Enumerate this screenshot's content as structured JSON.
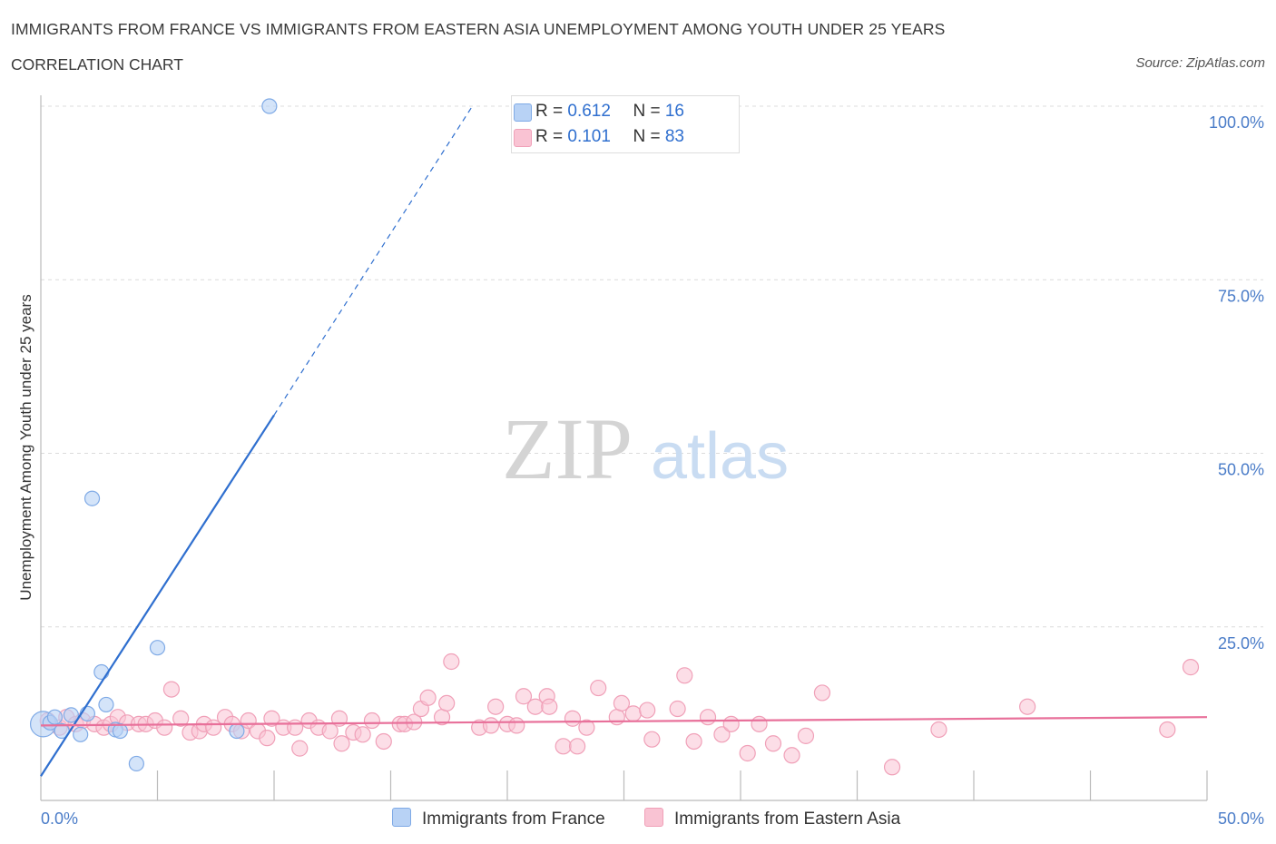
{
  "header": {
    "title": "IMMIGRANTS FROM FRANCE VS IMMIGRANTS FROM EASTERN ASIA UNEMPLOYMENT AMONG YOUTH UNDER 25 YEARS",
    "subtitle": "CORRELATION CHART",
    "source": "Source: ZipAtlas.com"
  },
  "watermark": {
    "zip": "ZIP",
    "atlas": "atlas"
  },
  "legend": {
    "france": {
      "r_label": "R = ",
      "r_value": "0.612",
      "n_label": "N = ",
      "n_value": "16"
    },
    "asia": {
      "r_label": "R = ",
      "r_value": "0.101",
      "n_label": "N = ",
      "n_value": "83"
    }
  },
  "colors": {
    "france_fill": "#b8d2f5",
    "france_stroke": "#7faae6",
    "france_line": "#2f6fcf",
    "asia_fill": "#f9c3d3",
    "asia_stroke": "#f0a0b8",
    "asia_line": "#e8709a"
  },
  "chart_data": {
    "type": "scatter",
    "title": "IMMIGRANTS FROM FRANCE VS IMMIGRANTS FROM EASTERN ASIA UNEMPLOYMENT AMONG YOUTH UNDER 25 YEARS",
    "xlabel": "",
    "ylabel": "Unemployment Among Youth under 25 years",
    "xlim": [
      0,
      50
    ],
    "ylim": [
      0,
      100
    ],
    "x_tick_labels": [
      "0.0%",
      "50.0%"
    ],
    "y_tick_values": [
      25,
      50,
      75,
      100
    ],
    "y_tick_labels": [
      "25.0%",
      "50.0%",
      "75.0%",
      "100.0%"
    ],
    "series": [
      {
        "name": "Immigrants from France",
        "points": [
          [
            0.1,
            11.0
          ],
          [
            0.4,
            11.2
          ],
          [
            0.6,
            12.0
          ],
          [
            0.9,
            10.0
          ],
          [
            1.3,
            12.3
          ],
          [
            1.7,
            9.5
          ],
          [
            2.0,
            12.5
          ],
          [
            2.2,
            43.5
          ],
          [
            2.6,
            18.5
          ],
          [
            2.8,
            13.8
          ],
          [
            3.2,
            10.2
          ],
          [
            3.4,
            10.0
          ],
          [
            4.1,
            5.3
          ],
          [
            5.0,
            22.0
          ],
          [
            8.4,
            10.0
          ],
          [
            9.8,
            100.0
          ]
        ],
        "trend": {
          "x0": 0,
          "y0": 3.5,
          "x1": 10.0,
          "y1": 55.5,
          "dashed_to": {
            "x": 18.5,
            "y": 100
          }
        }
      },
      {
        "name": "Immigrants from Eastern Asia",
        "points": [
          [
            0.3,
            11.5
          ],
          [
            0.8,
            10.5
          ],
          [
            1.1,
            12.0
          ],
          [
            1.5,
            11.0
          ],
          [
            1.8,
            11.5
          ],
          [
            2.3,
            11.0
          ],
          [
            2.7,
            10.5
          ],
          [
            3.0,
            11.0
          ],
          [
            3.3,
            12.0
          ],
          [
            3.7,
            11.2
          ],
          [
            4.2,
            11.0
          ],
          [
            4.5,
            11.0
          ],
          [
            4.9,
            11.5
          ],
          [
            5.3,
            10.5
          ],
          [
            5.6,
            16.0
          ],
          [
            6.0,
            11.8
          ],
          [
            6.4,
            9.8
          ],
          [
            6.8,
            10.0
          ],
          [
            7.0,
            11.0
          ],
          [
            7.4,
            10.5
          ],
          [
            7.9,
            12.0
          ],
          [
            8.2,
            11.0
          ],
          [
            8.6,
            10.0
          ],
          [
            8.9,
            11.5
          ],
          [
            9.3,
            10.0
          ],
          [
            9.7,
            9.0
          ],
          [
            9.9,
            11.8
          ],
          [
            10.4,
            10.5
          ],
          [
            10.9,
            10.5
          ],
          [
            11.1,
            7.5
          ],
          [
            11.5,
            11.5
          ],
          [
            11.9,
            10.5
          ],
          [
            12.4,
            10.0
          ],
          [
            12.8,
            11.8
          ],
          [
            12.9,
            8.2
          ],
          [
            13.4,
            9.8
          ],
          [
            13.8,
            9.5
          ],
          [
            14.2,
            11.5
          ],
          [
            14.7,
            8.5
          ],
          [
            15.4,
            11.0
          ],
          [
            15.6,
            11.0
          ],
          [
            16.0,
            11.3
          ],
          [
            16.3,
            13.2
          ],
          [
            16.6,
            14.8
          ],
          [
            17.2,
            12.0
          ],
          [
            17.4,
            14.0
          ],
          [
            17.6,
            20.0
          ],
          [
            18.8,
            10.5
          ],
          [
            19.3,
            10.8
          ],
          [
            19.5,
            13.5
          ],
          [
            20.0,
            11.0
          ],
          [
            20.4,
            10.8
          ],
          [
            20.7,
            15.0
          ],
          [
            21.2,
            13.5
          ],
          [
            21.7,
            15.0
          ],
          [
            21.8,
            13.5
          ],
          [
            22.4,
            7.8
          ],
          [
            22.8,
            11.8
          ],
          [
            23.0,
            7.8
          ],
          [
            23.4,
            10.5
          ],
          [
            23.9,
            16.2
          ],
          [
            24.7,
            12.0
          ],
          [
            24.9,
            14.0
          ],
          [
            25.4,
            12.5
          ],
          [
            26.0,
            13.0
          ],
          [
            26.2,
            8.8
          ],
          [
            27.3,
            13.2
          ],
          [
            27.6,
            18.0
          ],
          [
            28.0,
            8.5
          ],
          [
            28.6,
            12.0
          ],
          [
            29.2,
            9.5
          ],
          [
            29.6,
            11.0
          ],
          [
            30.3,
            6.8
          ],
          [
            30.8,
            11.0
          ],
          [
            31.4,
            8.2
          ],
          [
            32.2,
            6.5
          ],
          [
            32.8,
            9.3
          ],
          [
            33.5,
            15.5
          ],
          [
            36.5,
            4.8
          ],
          [
            38.5,
            10.2
          ],
          [
            42.3,
            13.5
          ],
          [
            48.3,
            10.2
          ],
          [
            49.3,
            19.2
          ]
        ],
        "trend": {
          "x0": 0,
          "y0": 10.8,
          "x1": 50,
          "y1": 12.0
        }
      }
    ]
  },
  "bottom_legend": {
    "france_label": "Immigrants from France",
    "asia_label": "Immigrants from Eastern Asia"
  }
}
